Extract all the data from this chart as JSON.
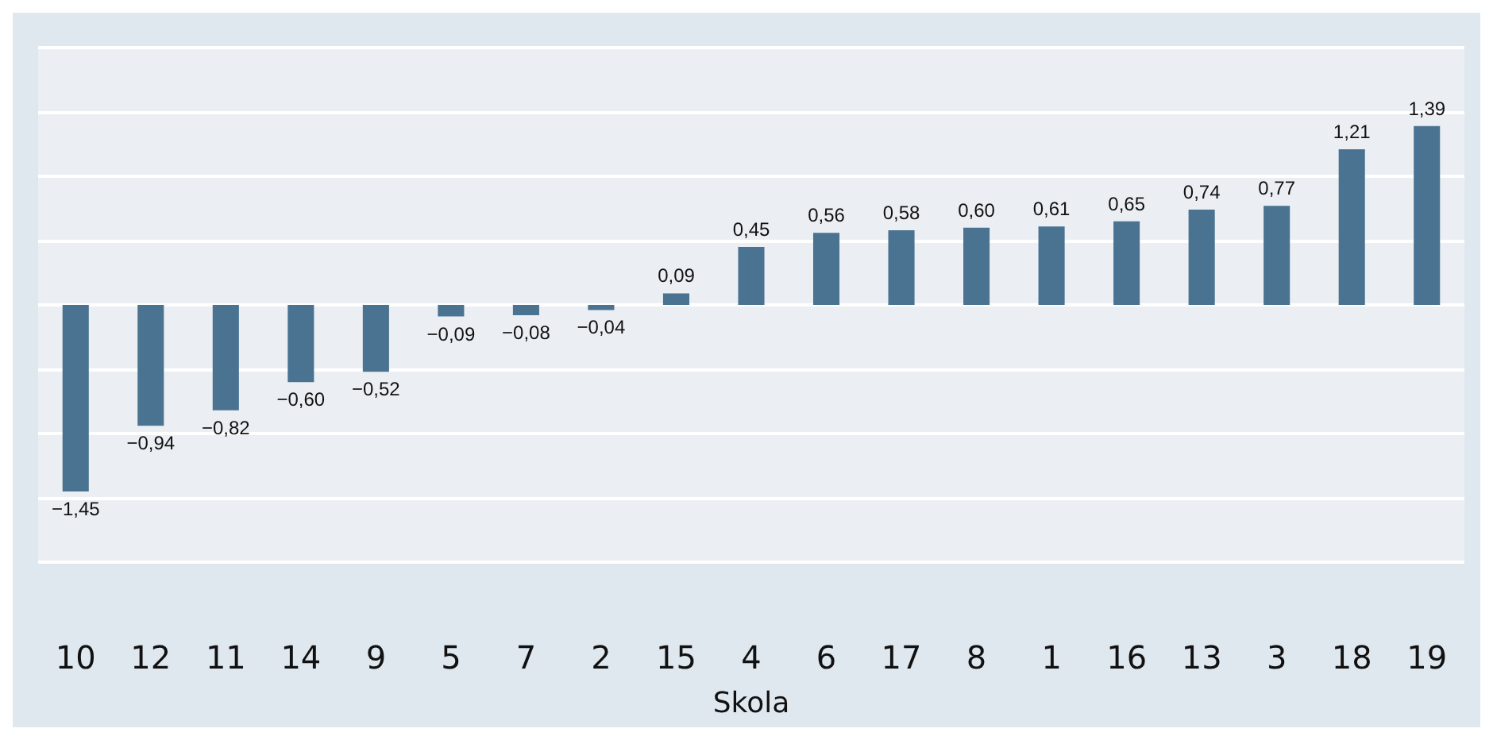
{
  "chart_data": {
    "type": "bar",
    "xlabel": "Skola",
    "categories": [
      "10",
      "12",
      "11",
      "14",
      "9",
      "5",
      "7",
      "2",
      "15",
      "4",
      "6",
      "17",
      "8",
      "1",
      "16",
      "13",
      "3",
      "18",
      "19"
    ],
    "values": [
      -1.45,
      -0.94,
      -0.82,
      -0.6,
      -0.52,
      -0.09,
      -0.08,
      -0.04,
      0.09,
      0.45,
      0.56,
      0.58,
      0.6,
      0.61,
      0.65,
      0.74,
      0.77,
      1.21,
      1.39
    ],
    "value_labels": [
      "−1,45",
      "−0,94",
      "−0,82",
      "−0,60",
      "−0,52",
      "−0,09",
      "−0,08",
      "−0,04",
      "0,09",
      "0,45",
      "0,56",
      "0,58",
      "0,60",
      "0,61",
      "0,65",
      "0,74",
      "0,77",
      "1,21",
      "1,39"
    ],
    "color": "#4a7391",
    "ylim": [
      -2,
      2
    ],
    "yticks": [
      {
        "value": -2,
        "label": null
      },
      {
        "value": -1.5,
        "label": null
      },
      {
        "value": -1,
        "label": null
      },
      {
        "value": -0.5,
        "label": null
      },
      {
        "value": 0,
        "label": null
      },
      {
        "value": 0.5,
        "label": null
      },
      {
        "value": 1,
        "label": null
      },
      {
        "value": 1.5,
        "label": null
      },
      {
        "value": 2,
        "label": null
      }
    ],
    "grid": "y",
    "tick_labels": "x"
  }
}
